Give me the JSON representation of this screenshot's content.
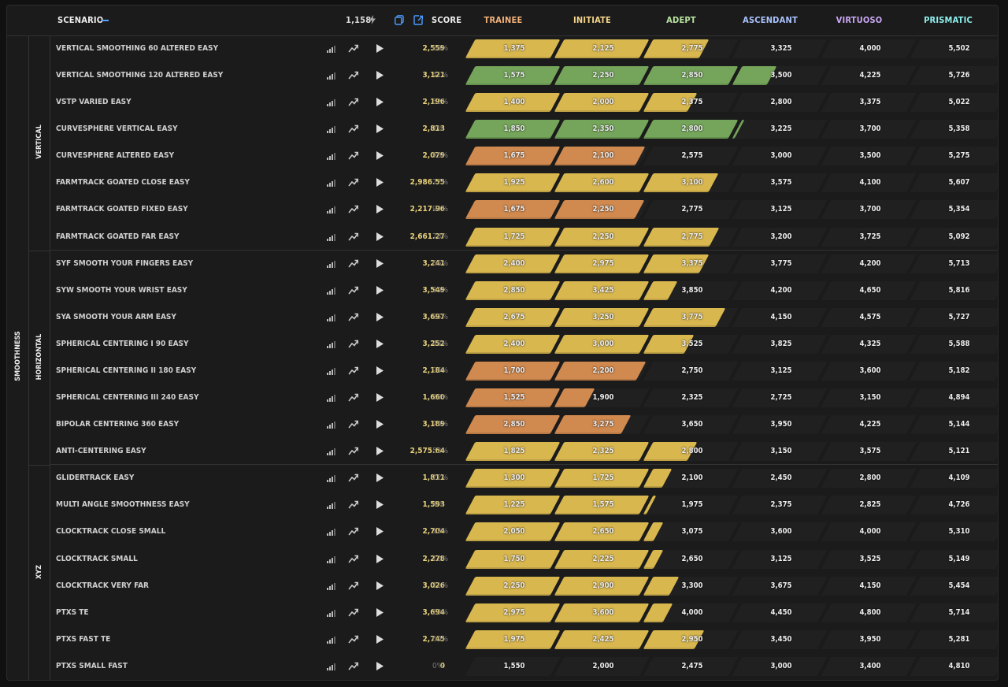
{
  "header": {
    "scenario_label": "SCENARIO",
    "energy_value": "1,158",
    "score_label": "SCORE",
    "ranks": [
      "TRAINEE",
      "INITIATE",
      "ADEPT",
      "ASCENDANT",
      "VIRTUOSO",
      "PRISMATIC"
    ],
    "rank_colors": [
      "#f3b27a",
      "#f4d58a",
      "#b7e3a0",
      "#a9c4ff",
      "#c9a7f5",
      "#8ef0ee"
    ]
  },
  "category": "SMOOTHNESS",
  "groups": [
    {
      "name": "VERTICAL",
      "rows": [
        {
          "name": "VERTICAL SMOOTHING 60 ALTERED EASY",
          "score": "2,559",
          "pct": "66%",
          "thresholds": [
            "1,375",
            "2,125",
            "2,775",
            "3,325",
            "4,000",
            "5,502"
          ],
          "fill": 2.66,
          "color": "yellow"
        },
        {
          "name": "VERTICAL SMOOTHING 120 ALTERED EASY",
          "score": "3,121",
          "pct": "41%",
          "thresholds": [
            "1,575",
            "2,250",
            "2,850",
            "3,500",
            "4,225",
            "5,726"
          ],
          "fill": 3.41,
          "color": "green"
        },
        {
          "name": "VSTP VARIED EASY",
          "score": "2,196",
          "pct": "52%",
          "thresholds": [
            "1,400",
            "2,000",
            "2,375",
            "2,800",
            "3,375",
            "5,022"
          ],
          "fill": 2.52,
          "color": "yellow"
        },
        {
          "name": "CURVESPHERE VERTICAL EASY",
          "score": "2,813",
          "pct": "3%",
          "thresholds": [
            "1,850",
            "2,350",
            "2,800",
            "3,225",
            "3,700",
            "5,358"
          ],
          "fill": 3.03,
          "color": "green"
        },
        {
          "name": "CURVESPHERE ALTERED EASY",
          "score": "2,079",
          "pct": "95%",
          "thresholds": [
            "1,675",
            "2,100",
            "2,575",
            "3,000",
            "3,500",
            "5,275"
          ],
          "fill": 1.95,
          "color": "orange"
        },
        {
          "name": "FARMTRACK GOATED CLOSE EASY",
          "score": "2,986.55",
          "pct": "77%",
          "thresholds": [
            "1,925",
            "2,600",
            "3,100",
            "3,575",
            "4,100",
            "5,607"
          ],
          "fill": 2.77,
          "color": "yellow"
        },
        {
          "name": "FARMTRACK GOATED FIXED EASY",
          "score": "2,217.96",
          "pct": "94%",
          "thresholds": [
            "1,675",
            "2,250",
            "2,775",
            "3,125",
            "3,700",
            "5,354"
          ],
          "fill": 1.94,
          "color": "orange"
        },
        {
          "name": "FARMTRACK GOATED FAR EASY",
          "score": "2,661.27",
          "pct": "78%",
          "thresholds": [
            "1,725",
            "2,250",
            "2,775",
            "3,200",
            "3,725",
            "5,092"
          ],
          "fill": 2.78,
          "color": "yellow"
        }
      ]
    },
    {
      "name": "HORIZONTAL",
      "rows": [
        {
          "name": "SYF SMOOTH YOUR FINGERS EASY",
          "score": "3,241",
          "pct": "66%",
          "thresholds": [
            "2,400",
            "2,975",
            "3,375",
            "3,775",
            "4,200",
            "5,713"
          ],
          "fill": 2.66,
          "color": "yellow"
        },
        {
          "name": "SYW SMOOTH YOUR WRIST EASY",
          "score": "3,549",
          "pct": "29%",
          "thresholds": [
            "2,850",
            "3,425",
            "3,850",
            "4,200",
            "4,650",
            "5,816"
          ],
          "fill": 2.29,
          "color": "yellow"
        },
        {
          "name": "SYA SMOOTH YOUR ARM EASY",
          "score": "3,697",
          "pct": "85%",
          "thresholds": [
            "2,675",
            "3,250",
            "3,775",
            "4,150",
            "4,575",
            "5,727"
          ],
          "fill": 2.85,
          "color": "yellow"
        },
        {
          "name": "SPHERICAL CENTERING I 90 EASY",
          "score": "3,252",
          "pct": "48%",
          "thresholds": [
            "2,400",
            "3,000",
            "3,525",
            "3,825",
            "4,325",
            "5,588"
          ],
          "fill": 2.48,
          "color": "yellow"
        },
        {
          "name": "SPHERICAL CENTERING II 180 EASY",
          "score": "2,184",
          "pct": "96%",
          "thresholds": [
            "1,700",
            "2,200",
            "2,750",
            "3,125",
            "3,600",
            "5,182"
          ],
          "fill": 1.96,
          "color": "orange"
        },
        {
          "name": "SPHERICAL CENTERING III 240 EASY",
          "score": "1,660",
          "pct": "36%",
          "thresholds": [
            "1,525",
            "1,900",
            "2,325",
            "2,725",
            "3,150",
            "4,894"
          ],
          "fill": 1.36,
          "color": "orange"
        },
        {
          "name": "BIPOLAR CENTERING 360 EASY",
          "score": "3,189",
          "pct": "79%",
          "thresholds": [
            "2,850",
            "3,275",
            "3,650",
            "3,950",
            "4,225",
            "5,144"
          ],
          "fill": 1.79,
          "color": "orange"
        },
        {
          "name": "ANTI-CENTERING EASY",
          "score": "2,575.64",
          "pct": "52%",
          "thresholds": [
            "1,825",
            "2,325",
            "2,800",
            "3,150",
            "3,575",
            "5,121"
          ],
          "fill": 2.52,
          "color": "yellow"
        }
      ]
    },
    {
      "name": "XYZ",
      "rows": [
        {
          "name": "GLIDERTRACK EASY",
          "score": "1,811",
          "pct": "22%",
          "thresholds": [
            "1,300",
            "1,725",
            "2,100",
            "2,450",
            "2,800",
            "4,109"
          ],
          "fill": 2.22,
          "color": "yellow"
        },
        {
          "name": "MULTI ANGLE SMOOTHNESS EASY",
          "score": "1,593",
          "pct": "4%",
          "thresholds": [
            "1,225",
            "1,575",
            "1,975",
            "2,375",
            "2,825",
            "4,726"
          ],
          "fill": 2.04,
          "color": "yellow"
        },
        {
          "name": "CLOCKTRACK CLOSE SMALL",
          "score": "2,704",
          "pct": "12%",
          "thresholds": [
            "2,050",
            "2,650",
            "3,075",
            "3,600",
            "4,000",
            "5,310"
          ],
          "fill": 2.12,
          "color": "yellow"
        },
        {
          "name": "CLOCKTRACK SMALL",
          "score": "2,278",
          "pct": "12%",
          "thresholds": [
            "1,750",
            "2,225",
            "2,650",
            "3,125",
            "3,525",
            "5,149"
          ],
          "fill": 2.12,
          "color": "yellow"
        },
        {
          "name": "CLOCKTRACK VERY FAR",
          "score": "3,026",
          "pct": "31%",
          "thresholds": [
            "2,250",
            "2,900",
            "3,300",
            "3,675",
            "4,150",
            "5,454"
          ],
          "fill": 2.31,
          "color": "yellow"
        },
        {
          "name": "PTXS TE",
          "score": "3,694",
          "pct": "23%",
          "thresholds": [
            "2,975",
            "3,600",
            "4,000",
            "4,450",
            "4,800",
            "5,714"
          ],
          "fill": 2.23,
          "color": "yellow"
        },
        {
          "name": "PTXS FAST TE",
          "score": "2,745",
          "pct": "60%",
          "thresholds": [
            "1,975",
            "2,425",
            "2,950",
            "3,450",
            "3,950",
            "5,281"
          ],
          "fill": 2.6,
          "color": "yellow"
        },
        {
          "name": "PTXS SMALL FAST",
          "score": "0",
          "pct": "0%",
          "thresholds": [
            "1,550",
            "2,000",
            "2,475",
            "3,000",
            "3,400",
            "4,810"
          ],
          "fill": 0,
          "color": "yellow"
        }
      ]
    }
  ],
  "colors": {
    "yellow": "#d9b74f",
    "green": "#74a55a",
    "orange": "#d0894f"
  }
}
